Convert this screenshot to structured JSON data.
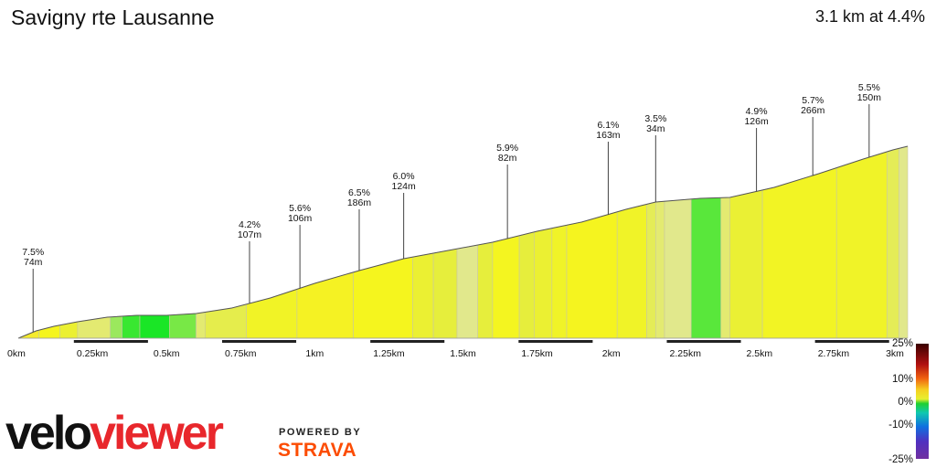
{
  "header": {
    "title": "Savigny rte Lausanne",
    "summary": "3.1 km at 4.4%"
  },
  "branding": {
    "velo": "velo",
    "viewer": "viewer",
    "powered_by": "POWERED BY",
    "strava": "STRAVA"
  },
  "colors": {
    "outline": "#555555",
    "scale_bar": "#222222",
    "velo_text": "#111111",
    "viewer_text": "#e8272c",
    "strava_orange": "#fc4c02"
  },
  "chart_data": {
    "type": "area",
    "title": "",
    "xlabel": "",
    "ylabel": "",
    "x_unit": "km",
    "xlim": [
      0,
      3.0
    ],
    "x_ticks": [
      {
        "value": 0,
        "label": "0km"
      },
      {
        "value": 0.25,
        "label": "0.25km"
      },
      {
        "value": 0.5,
        "label": "0.5km"
      },
      {
        "value": 0.75,
        "label": "0.75km"
      },
      {
        "value": 1.0,
        "label": "1km"
      },
      {
        "value": 1.25,
        "label": "1.25km"
      },
      {
        "value": 1.5,
        "label": "1.5km"
      },
      {
        "value": 1.75,
        "label": "1.75km"
      },
      {
        "value": 2.0,
        "label": "2km"
      },
      {
        "value": 2.25,
        "label": "2.25km"
      },
      {
        "value": 2.5,
        "label": "2.5km"
      },
      {
        "value": 2.75,
        "label": "2.75km"
      },
      {
        "value": 3.0,
        "label": "3km"
      }
    ],
    "profile": [
      [
        0.0,
        0
      ],
      [
        0.06,
        8
      ],
      [
        0.12,
        13
      ],
      [
        0.2,
        18
      ],
      [
        0.3,
        23
      ],
      [
        0.4,
        25
      ],
      [
        0.5,
        25
      ],
      [
        0.6,
        27
      ],
      [
        0.72,
        33
      ],
      [
        0.85,
        44
      ],
      [
        1.0,
        60
      ],
      [
        1.15,
        74
      ],
      [
        1.3,
        87
      ],
      [
        1.45,
        96
      ],
      [
        1.6,
        105
      ],
      [
        1.75,
        117
      ],
      [
        1.9,
        127
      ],
      [
        2.05,
        141
      ],
      [
        2.15,
        149
      ],
      [
        2.3,
        153
      ],
      [
        2.4,
        154
      ],
      [
        2.55,
        165
      ],
      [
        2.7,
        180
      ],
      [
        2.85,
        196
      ],
      [
        2.95,
        206
      ],
      [
        3.0,
        210
      ]
    ],
    "segments": [
      {
        "start": 0.0,
        "end": 0.07,
        "gradient": 7.5
      },
      {
        "start": 0.07,
        "end": 0.14,
        "gradient": 6.0
      },
      {
        "start": 0.14,
        "end": 0.2,
        "gradient": 5.0
      },
      {
        "start": 0.2,
        "end": 0.31,
        "gradient": 3.5
      },
      {
        "start": 0.31,
        "end": 0.35,
        "gradient": 2.0
      },
      {
        "start": 0.35,
        "end": 0.41,
        "gradient": 0.5
      },
      {
        "start": 0.41,
        "end": 0.51,
        "gradient": 0.0
      },
      {
        "start": 0.51,
        "end": 0.6,
        "gradient": 1.5
      },
      {
        "start": 0.6,
        "end": 0.63,
        "gradient": 3.5
      },
      {
        "start": 0.63,
        "end": 0.77,
        "gradient": 4.2
      },
      {
        "start": 0.77,
        "end": 0.94,
        "gradient": 5.6
      },
      {
        "start": 0.94,
        "end": 1.13,
        "gradient": 6.5
      },
      {
        "start": 1.13,
        "end": 1.33,
        "gradient": 6.0
      },
      {
        "start": 1.33,
        "end": 1.4,
        "gradient": 5.0
      },
      {
        "start": 1.4,
        "end": 1.48,
        "gradient": 4.5
      },
      {
        "start": 1.48,
        "end": 1.55,
        "gradient": 3.0
      },
      {
        "start": 1.55,
        "end": 1.6,
        "gradient": 4.5
      },
      {
        "start": 1.6,
        "end": 1.69,
        "gradient": 5.9
      },
      {
        "start": 1.69,
        "end": 1.74,
        "gradient": 4.5
      },
      {
        "start": 1.74,
        "end": 1.8,
        "gradient": 5.0
      },
      {
        "start": 1.8,
        "end": 1.85,
        "gradient": 5.5
      },
      {
        "start": 1.85,
        "end": 2.02,
        "gradient": 6.1
      },
      {
        "start": 2.02,
        "end": 2.12,
        "gradient": 5.5
      },
      {
        "start": 2.12,
        "end": 2.15,
        "gradient": 4.0
      },
      {
        "start": 2.15,
        "end": 2.18,
        "gradient": 3.5
      },
      {
        "start": 2.18,
        "end": 2.27,
        "gradient": 3.0
      },
      {
        "start": 2.27,
        "end": 2.37,
        "gradient": 1.0
      },
      {
        "start": 2.37,
        "end": 2.4,
        "gradient": 3.5
      },
      {
        "start": 2.4,
        "end": 2.51,
        "gradient": 4.9
      },
      {
        "start": 2.51,
        "end": 2.76,
        "gradient": 5.7
      },
      {
        "start": 2.76,
        "end": 2.93,
        "gradient": 5.5
      },
      {
        "start": 2.93,
        "end": 2.97,
        "gradient": 4.0
      },
      {
        "start": 2.97,
        "end": 3.0,
        "gradient": 3.0
      }
    ],
    "annotations": [
      {
        "x": 0.05,
        "y": 6,
        "tip_y": 76,
        "gradient": "7.5%",
        "length": "74m"
      },
      {
        "x": 0.78,
        "y": 35,
        "tip_y": 106,
        "gradient": "4.2%",
        "length": "107m"
      },
      {
        "x": 0.95,
        "y": 50,
        "tip_y": 124,
        "gradient": "5.6%",
        "length": "106m"
      },
      {
        "x": 1.15,
        "y": 73,
        "tip_y": 141,
        "gradient": "6.5%",
        "length": "186m"
      },
      {
        "x": 1.3,
        "y": 85,
        "tip_y": 159,
        "gradient": "6.0%",
        "length": "124m"
      },
      {
        "x": 1.65,
        "y": 112,
        "tip_y": 190,
        "gradient": "5.9%",
        "length": "82m"
      },
      {
        "x": 1.99,
        "y": 137,
        "tip_y": 215,
        "gradient": "6.1%",
        "length": "163m"
      },
      {
        "x": 2.15,
        "y": 149,
        "tip_y": 222,
        "gradient": "3.5%",
        "length": "34m"
      },
      {
        "x": 2.49,
        "y": 161,
        "tip_y": 230,
        "gradient": "4.9%",
        "length": "126m"
      },
      {
        "x": 2.68,
        "y": 178,
        "tip_y": 242,
        "gradient": "5.7%",
        "length": "266m"
      },
      {
        "x": 2.87,
        "y": 198,
        "tip_y": 256,
        "gradient": "5.5%",
        "length": "150m"
      }
    ],
    "gradient_scale": {
      "labels": [
        {
          "value": 25,
          "label": "25%"
        },
        {
          "value": 10,
          "label": "10%"
        },
        {
          "value": 0,
          "label": "0%"
        },
        {
          "value": -10,
          "label": "-10%"
        },
        {
          "value": -25,
          "label": "-25%"
        }
      ]
    },
    "grid": false,
    "legend": "none"
  }
}
